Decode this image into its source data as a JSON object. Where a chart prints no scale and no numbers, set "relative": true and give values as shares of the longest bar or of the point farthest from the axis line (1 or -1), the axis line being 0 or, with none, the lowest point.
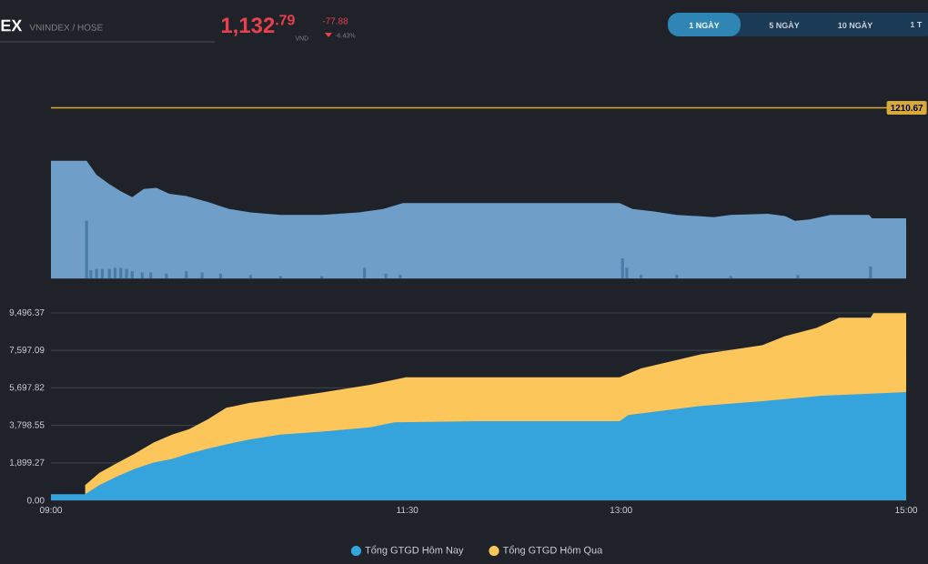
{
  "chart_data": [
    {
      "type": "other",
      "annotations": [
        "EX",
        "VNINDEX / HOSE",
        "1,132$^{.79}$",
        "VND",
        "-77.88",
        "-6.43%",
        "1 NGÀY",
        "5 NGÀY",
        "10 NGÀY",
        "1 T"
      ]
    },
    {
      "type": "area",
      "relative": true,
      "xlim": [
        9,
        15
      ],
      "annotations": [
        "1210.67"
      ],
      "ref_lines": [
        {
          "axis": "y",
          "value": 1.45,
          "color": "#d9a93a"
        }
      ],
      "series": [
        {
          "type": "area",
          "color": "#6f9fc8",
          "x": [
            9.0,
            9.25,
            9.32,
            9.41,
            9.49,
            9.57,
            9.65,
            9.74,
            9.83,
            9.95,
            10.1,
            10.25,
            10.4,
            10.61,
            10.9,
            11.16,
            11.33,
            11.47,
            12.99,
            13.08,
            13.22,
            13.39,
            13.65,
            13.77,
            14.03,
            14.15,
            14.22,
            14.32,
            14.47,
            14.74,
            14.76,
            15.0
          ],
          "values": [
            1,
            1,
            0.88,
            0.8,
            0.74,
            0.69,
            0.76,
            0.77,
            0.72,
            0.7,
            0.65,
            0.59,
            0.56,
            0.54,
            0.54,
            0.56,
            0.59,
            0.64,
            0.64,
            0.59,
            0.57,
            0.54,
            0.52,
            0.54,
            0.55,
            0.53,
            0.49,
            0.5,
            0.54,
            0.54,
            0.51,
            0.51
          ]
        },
        {
          "type": "bar",
          "color": "#4a7ca8",
          "x": [
            9.25,
            9.28,
            9.32,
            9.36,
            9.41,
            9.45,
            9.49,
            9.53,
            9.57,
            9.64,
            9.7,
            9.81,
            9.95,
            10.06,
            10.19,
            10.4,
            10.61,
            10.9,
            11.2,
            11.35,
            11.45,
            13.01,
            13.04,
            13.14,
            13.39,
            13.77,
            14.24,
            14.75
          ],
          "values": [
            0.49,
            0.07,
            0.08,
            0.08,
            0.08,
            0.09,
            0.09,
            0.08,
            0.06,
            0.05,
            0.05,
            0.04,
            0.06,
            0.05,
            0.04,
            0.03,
            0.02,
            0.02,
            0.09,
            0.04,
            0.03,
            0.17,
            0.09,
            0.03,
            0.03,
            0.02,
            0.03,
            0.1
          ]
        }
      ]
    },
    {
      "type": "area",
      "xlim": [
        9,
        15
      ],
      "ylim": [
        0,
        9496.37
      ],
      "xticks": [
        {
          "value": 9,
          "label": "09:00"
        },
        {
          "value": 11.5,
          "label": "11:30"
        },
        {
          "value": 13,
          "label": "13:00"
        },
        {
          "value": 15,
          "label": "15:00"
        }
      ],
      "yticks": [
        {
          "value": 0,
          "label": "0.00"
        },
        {
          "value": 1899.27,
          "label": "1,899.27"
        },
        {
          "value": 3798.55,
          "label": "3,798.55"
        },
        {
          "value": 5697.82,
          "label": "5,697.82"
        },
        {
          "value": 7597.09,
          "label": "7,597.09"
        },
        {
          "value": 9496.37,
          "label": "9,496.37"
        }
      ],
      "grid": "y",
      "legend": "bottom",
      "series": [
        {
          "name": "Tổng GTGD Hôm Nay",
          "color": "#35a3dc",
          "x": [
            9,
            9.24,
            9.34,
            9.47,
            9.59,
            9.72,
            9.85,
            9.97,
            10.1,
            10.23,
            10.39,
            10.61,
            10.9,
            11.24,
            11.41,
            12.0,
            12.99,
            13.05,
            13.56,
            13.99,
            14.41,
            14.75,
            15
          ],
          "values": [
            310,
            310,
            770,
            1230,
            1600,
            1910,
            2100,
            2370,
            2620,
            2840,
            3080,
            3330,
            3480,
            3700,
            3950,
            4010,
            4010,
            4320,
            4780,
            5030,
            5300,
            5400,
            5490
          ]
        },
        {
          "name": "Tổng GTGD Hôm Qua",
          "color": "#fcc65a",
          "x": [
            9.24,
            9.34,
            9.47,
            9.59,
            9.72,
            9.85,
            9.97,
            10.1,
            10.23,
            10.39,
            10.61,
            10.9,
            11.24,
            11.49,
            12.99,
            13.14,
            13.56,
            13.99,
            14.15,
            14.37,
            14.53,
            14.75,
            14.77,
            15
          ],
          "values": [
            770,
            1390,
            1910,
            2370,
            2930,
            3330,
            3610,
            4100,
            4690,
            4930,
            5150,
            5460,
            5860,
            6230,
            6230,
            6690,
            7400,
            7860,
            8320,
            8730,
            9250,
            9250,
            9490,
            9490
          ]
        }
      ]
    }
  ]
}
